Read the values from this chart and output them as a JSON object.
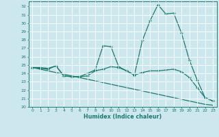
{
  "title": "",
  "xlabel": "Humidex (Indice chaleur)",
  "background_color": "#cce8ee",
  "line_color": "#1a7a6e",
  "xlim": [
    -0.5,
    23.5
  ],
  "ylim": [
    20,
    32.6
  ],
  "yticks": [
    20,
    21,
    22,
    23,
    24,
    25,
    26,
    27,
    28,
    29,
    30,
    31,
    32
  ],
  "xticks": [
    0,
    1,
    2,
    3,
    4,
    5,
    6,
    7,
    8,
    9,
    10,
    11,
    12,
    13,
    14,
    15,
    16,
    17,
    18,
    19,
    20,
    21,
    22,
    23
  ],
  "line1": [
    24.7,
    24.6,
    24.5,
    24.9,
    23.7,
    23.6,
    23.6,
    24.0,
    24.4,
    27.3,
    27.2,
    24.8,
    24.3,
    23.8,
    27.9,
    30.3,
    32.2,
    31.1,
    31.2,
    28.8,
    25.6,
    23.2,
    21.1,
    20.7
  ],
  "line2": [
    24.7,
    24.7,
    24.6,
    24.9,
    23.7,
    23.6,
    23.6,
    23.7,
    24.3,
    24.5,
    24.8,
    24.7,
    24.3,
    23.8,
    24.1,
    24.3,
    24.3,
    24.4,
    24.5,
    24.2,
    23.5,
    22.3,
    21.1,
    20.7
  ],
  "line3": [
    24.7,
    24.5,
    24.3,
    24.1,
    23.9,
    23.7,
    23.5,
    23.3,
    23.1,
    22.9,
    22.7,
    22.5,
    22.3,
    22.1,
    21.9,
    21.7,
    21.5,
    21.3,
    21.1,
    20.9,
    20.7,
    20.5,
    20.3,
    20.2
  ]
}
